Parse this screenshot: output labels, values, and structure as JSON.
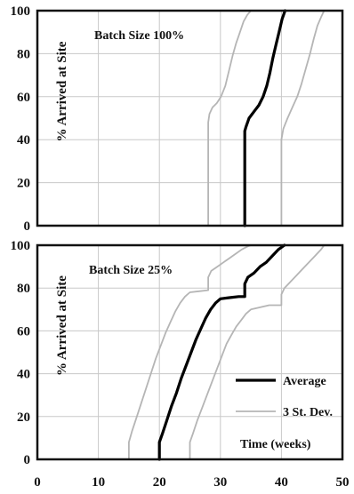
{
  "chart_data": [
    {
      "type": "line",
      "annotation": "Batch Size 100%",
      "ylabel": "% Arrived at Site",
      "xlim": [
        0,
        50
      ],
      "ylim": [
        0,
        100
      ],
      "x_ticks": [
        "0",
        "10",
        "20",
        "30",
        "40",
        "50"
      ],
      "y_ticks": [
        "0",
        "20",
        "40",
        "60",
        "80",
        "100"
      ],
      "grid": true,
      "series": [
        {
          "name": "Average",
          "color": "#000000",
          "x": [
            34,
            34,
            34.2,
            34.7,
            35.5,
            36.3,
            37,
            37.6,
            38.1,
            38.6,
            39.1,
            39.6,
            40.1,
            40.6
          ],
          "y": [
            0,
            44,
            46,
            50,
            53,
            56,
            60,
            65,
            71,
            78,
            84,
            90,
            96,
            100
          ]
        },
        {
          "name": "3 St. Dev.",
          "color": "#b5b5b5",
          "x": [
            28,
            28,
            28.2,
            28.7,
            29.4,
            30.1,
            30.8,
            31.4,
            32,
            32.6,
            33.2,
            33.8,
            34.4,
            35
          ],
          "y": [
            0,
            48,
            52,
            55,
            57,
            60,
            65,
            72,
            79,
            85,
            90,
            95,
            98,
            100
          ]
        },
        {
          "name": "3 St. Dev.",
          "color": "#b5b5b5",
          "x": [
            40,
            40,
            40.3,
            41,
            41.8,
            42.6,
            43.3,
            44,
            44.7,
            45.3,
            45.9,
            46.5,
            47
          ],
          "y": [
            0,
            40,
            45,
            50,
            55,
            60,
            66,
            73,
            80,
            87,
            93,
            97,
            100
          ]
        }
      ]
    },
    {
      "type": "line",
      "annotation": "Batch Size 25%",
      "ylabel": "% Arrived at Site",
      "xlabel": "Time (weeks)",
      "xlim": [
        0,
        50
      ],
      "ylim": [
        0,
        100
      ],
      "x_ticks": [
        "0",
        "10",
        "20",
        "30",
        "40",
        "50"
      ],
      "y_ticks": [
        "0",
        "20",
        "40",
        "60",
        "80",
        "100"
      ],
      "grid": true,
      "legend": "bottom-right",
      "series": [
        {
          "name": "Average",
          "color": "#000000",
          "x": [
            20,
            20,
            20.5,
            21.2,
            22,
            22.8,
            23.6,
            24.4,
            25.2,
            26,
            26.8,
            27.6,
            28.4,
            29.2,
            30,
            31.5,
            33,
            34,
            34,
            34.5,
            35.5,
            36.5,
            37.5,
            38.5,
            39.5,
            40.5
          ],
          "y": [
            0,
            8,
            12,
            18,
            25,
            31,
            38,
            44,
            50,
            56,
            61,
            66,
            70,
            73,
            75,
            75.5,
            76,
            76,
            82,
            85,
            87,
            90,
            92,
            95,
            98,
            100
          ]
        },
        {
          "name": "3 St. Dev.",
          "color": "#b5b5b5",
          "x": [
            15,
            15,
            15.5,
            16.2,
            17,
            17.8,
            18.6,
            19.4,
            20.2,
            21,
            21.8,
            22.6,
            23.4,
            24.2,
            25,
            26.5,
            28,
            28,
            28.5,
            29.5,
            30.5,
            31.5,
            32.5,
            33.5,
            34.5,
            35
          ],
          "y": [
            0,
            8,
            13,
            19,
            26,
            33,
            40,
            47,
            53,
            59,
            64,
            69,
            73,
            76,
            78,
            78.5,
            79,
            85,
            88,
            90,
            92,
            94,
            96,
            98,
            99.5,
            100
          ]
        },
        {
          "name": "3 St. Dev.",
          "color": "#b5b5b5",
          "x": [
            25,
            25,
            25.5,
            26.2,
            27,
            27.8,
            28.6,
            29.4,
            30.2,
            31,
            31.8,
            32.6,
            33.4,
            34.2,
            35,
            36.5,
            38,
            40,
            40,
            40.5,
            41.5,
            42.5,
            43.5,
            44.5,
            45.5,
            46.5,
            47
          ],
          "y": [
            0,
            8,
            12,
            18,
            24,
            30,
            36,
            42,
            48,
            54,
            58,
            62,
            65,
            68,
            70,
            71,
            72,
            72,
            77,
            80,
            83,
            86,
            89,
            92,
            95,
            98,
            100
          ]
        }
      ]
    }
  ]
}
